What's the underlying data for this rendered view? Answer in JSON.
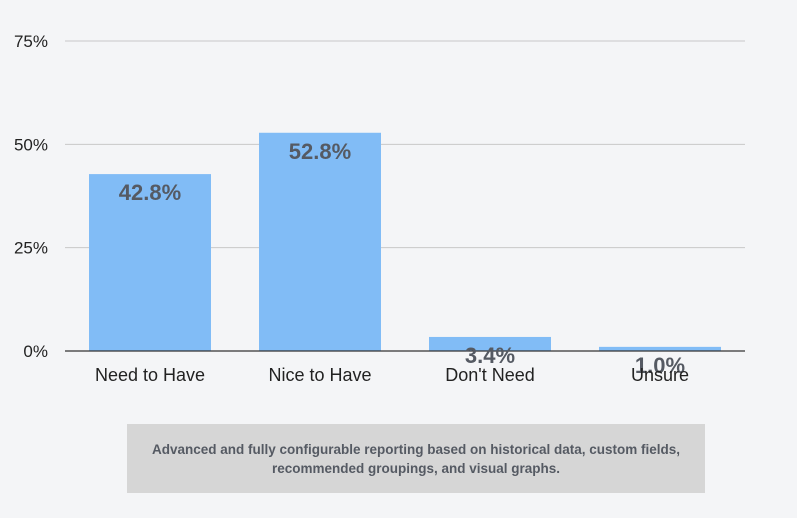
{
  "chart_data": {
    "type": "bar",
    "categories": [
      "Need to Have",
      "Nice to Have",
      "Don't Need",
      "Unsure"
    ],
    "values": [
      42.8,
      52.8,
      3.4,
      1.0
    ],
    "data_labels": [
      "42.8%",
      "52.8%",
      "3.4%",
      "1.0%"
    ],
    "yticks": [
      0,
      25,
      50,
      75
    ],
    "ytick_labels": [
      "0%",
      "25%",
      "50%",
      "75%"
    ],
    "ylim": [
      0,
      75
    ],
    "grid": true,
    "bar_color": "#81bcf6",
    "title": "",
    "xlabel": "",
    "ylabel": ""
  },
  "caption": {
    "text": "Advanced and fully configurable reporting based on historical data, custom fields, recommended groupings, and visual graphs."
  }
}
